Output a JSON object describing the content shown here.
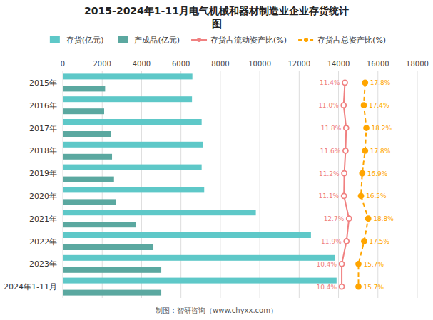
{
  "chart_data": {
    "type": "bar",
    "orientation": "horizontal",
    "title": "2015-2024年1-11月电气机械和器材制造业企业存货统计\n图",
    "categories": [
      "2015年",
      "2016年",
      "2017年",
      "2018年",
      "2019年",
      "2020年",
      "2021年",
      "2022年",
      "2023年",
      "2024年1-11月"
    ],
    "xlim": [
      0,
      18000
    ],
    "xticks": [
      0,
      2000,
      4000,
      6000,
      8000,
      10000,
      12000,
      14000,
      16000,
      18000
    ],
    "y2lim": [
      -78.125,
      34.375
    ],
    "grid": true,
    "legend": "top",
    "series": [
      {
        "name": "存货(亿元)",
        "color": "#5EC8C8",
        "values": [
          6580,
          6560,
          7050,
          7100,
          7050,
          7180,
          9800,
          12600,
          13800,
          13900
        ]
      },
      {
        "name": "产成品(亿元)",
        "color": "#5BA8A0",
        "values": [
          2150,
          2100,
          2450,
          2500,
          2600,
          2700,
          3700,
          4600,
          5000,
          5000
        ]
      },
      {
        "name": "存货占流动资产比(%)",
        "type": "line",
        "axis": "y2",
        "color": "#F08080",
        "marker": "circle",
        "line_style": "solid",
        "data_labels": true,
        "values": [
          11.4,
          11.0,
          11.8,
          11.6,
          11.2,
          11.1,
          12.7,
          11.9,
          10.4,
          10.4
        ],
        "value_labels": [
          "11.4%",
          "11.0%",
          "11.8%",
          "11.6%",
          "11.2%",
          "11.1%",
          "12.7%",
          "11.9%",
          "10.4%",
          "10.4%"
        ]
      },
      {
        "name": "存货占总资产比(%)",
        "type": "line",
        "axis": "y2",
        "color": "#FFA500",
        "marker": "circle",
        "line_style": "dashed",
        "data_labels": true,
        "values": [
          17.8,
          17.4,
          18.2,
          17.8,
          16.9,
          16.5,
          18.8,
          17.5,
          15.7,
          15.7
        ],
        "value_labels": [
          "17.8%",
          "17.4%",
          "18.2%",
          "17.8%",
          "16.9%",
          "16.5%",
          "18.8%",
          "17.5%",
          "15.7%",
          "15.7%"
        ]
      }
    ],
    "annotations": [
      "制图：智研咨询（www.chyxx.com）"
    ]
  }
}
